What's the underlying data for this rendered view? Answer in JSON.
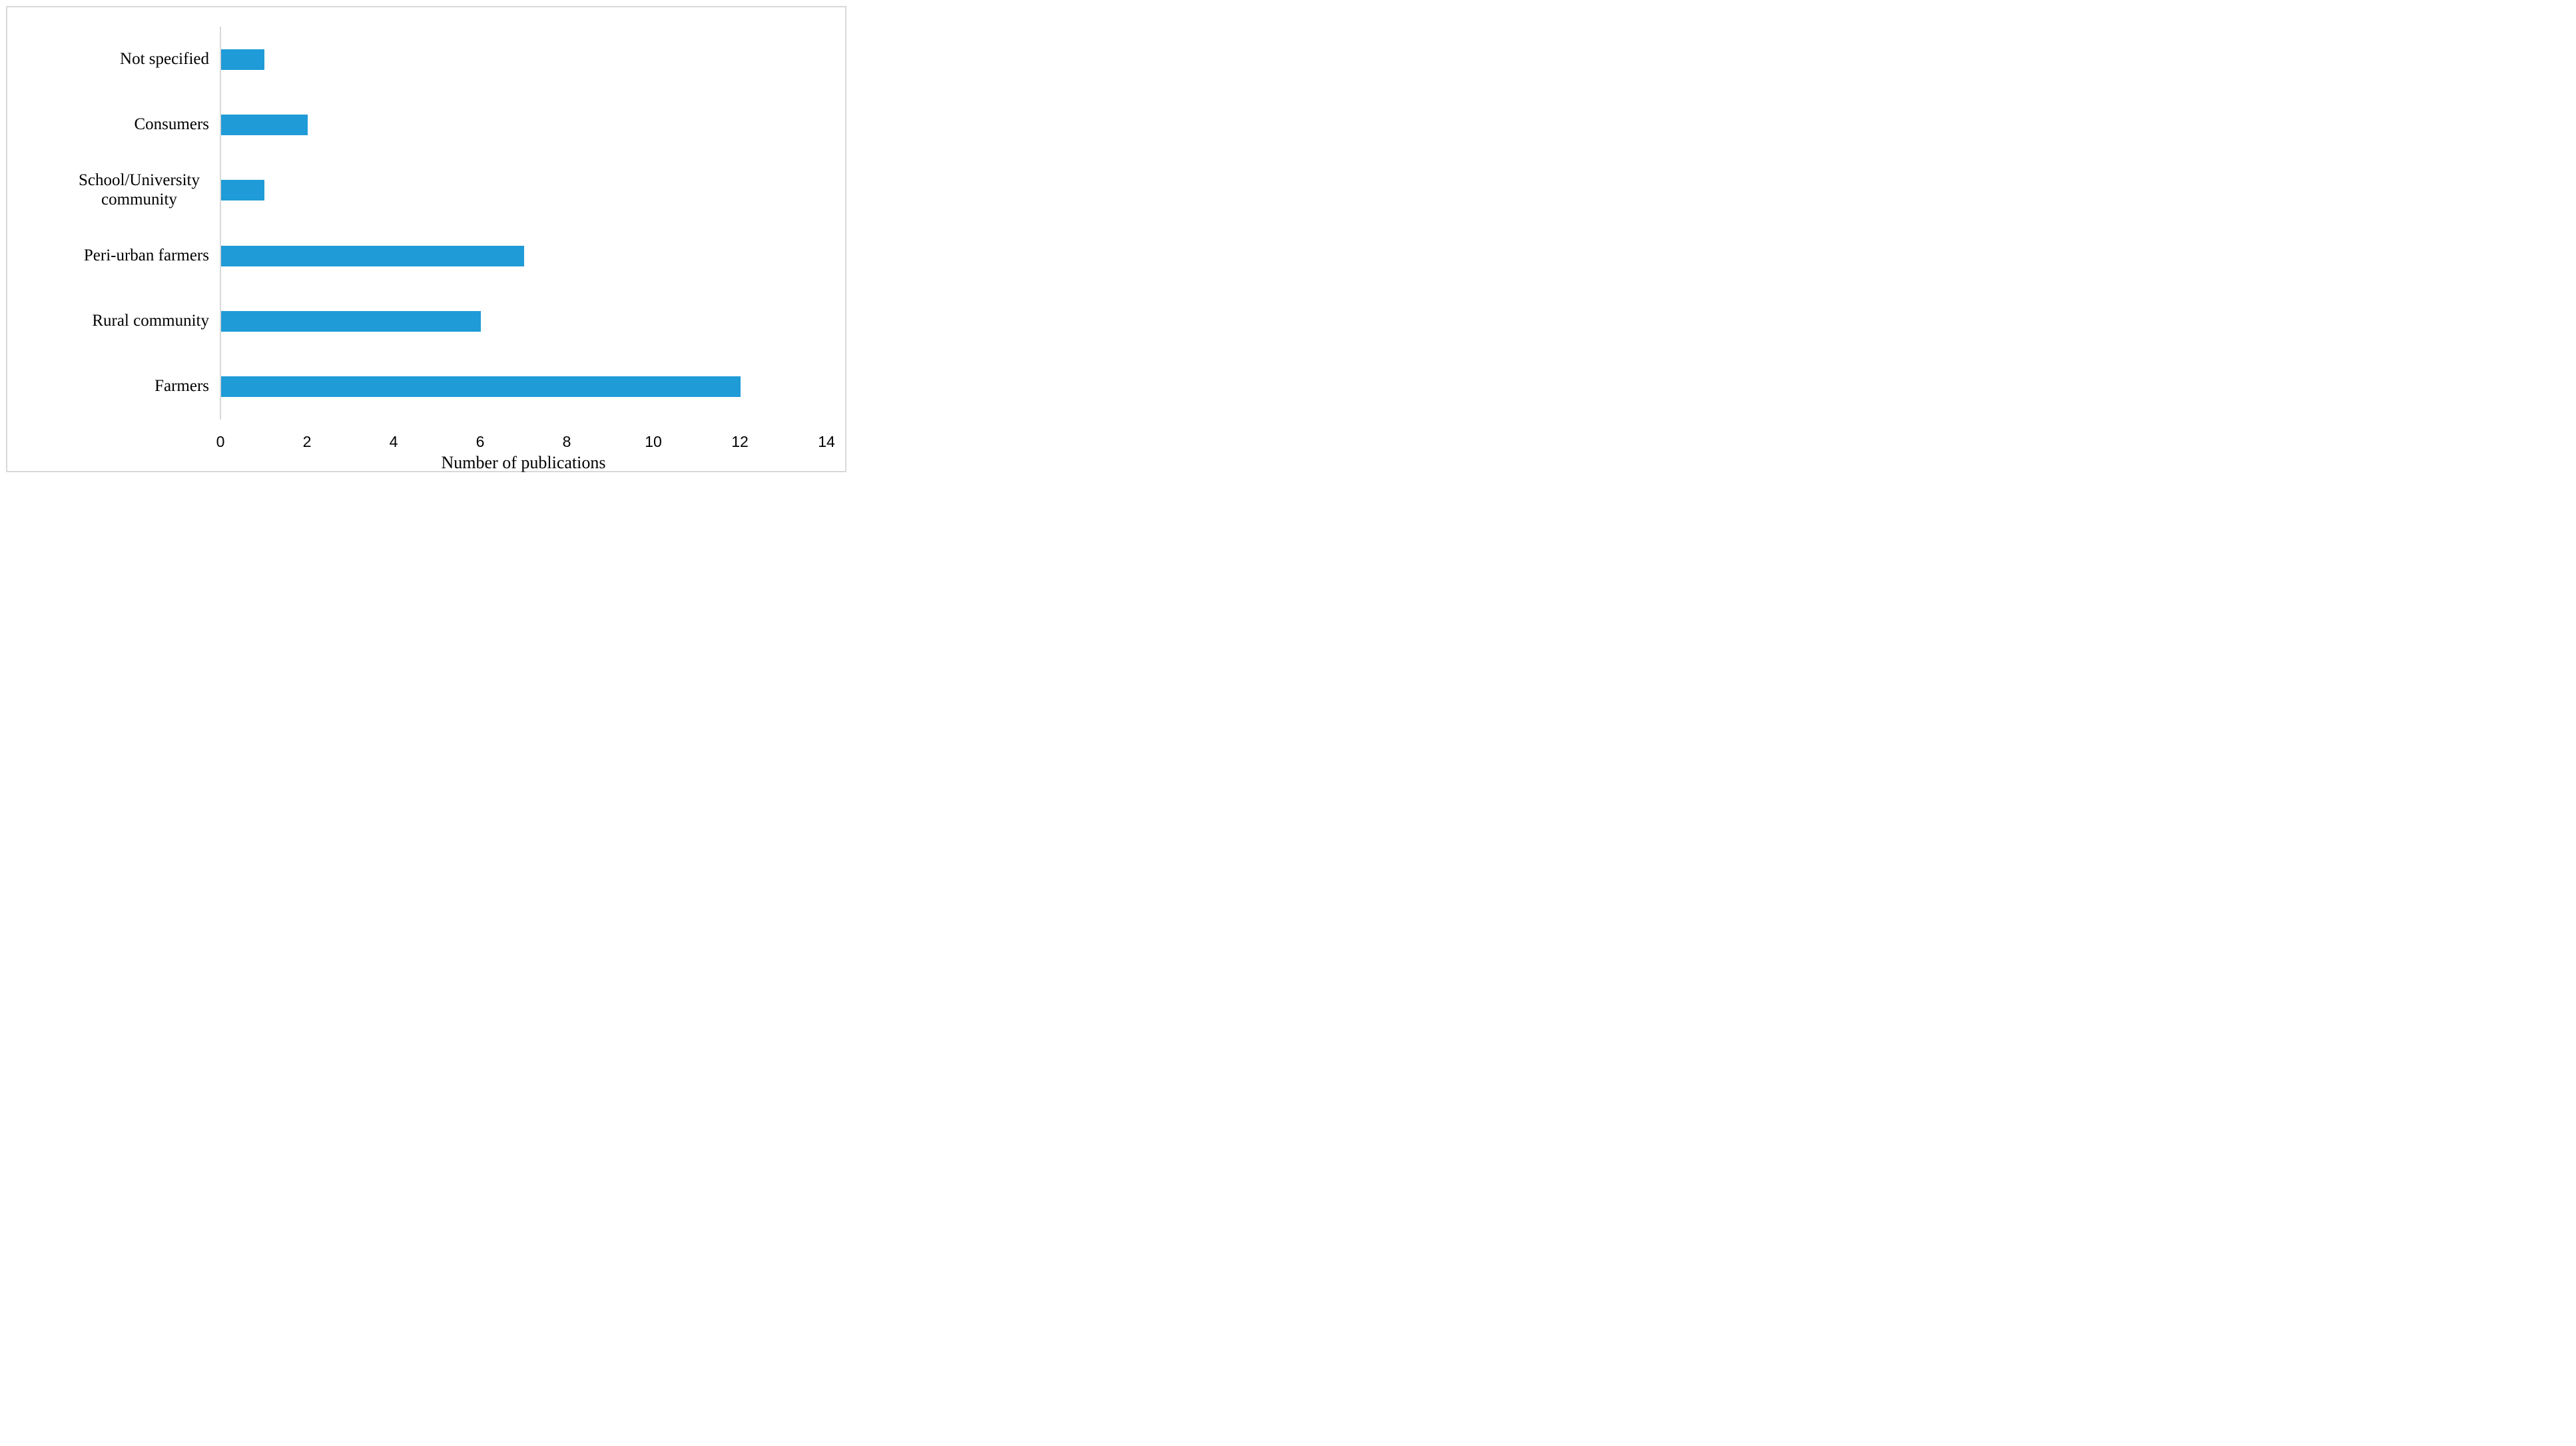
{
  "chart_data": {
    "type": "bar",
    "orientation": "horizontal",
    "categories": [
      "Not specified",
      "Consumers",
      "School/University community",
      "Peri-urban farmers",
      "Rural community",
      "Farmers"
    ],
    "values": [
      1,
      2,
      1,
      7,
      6,
      12
    ],
    "title": "",
    "xlabel": "Number of publications",
    "ylabel": "",
    "xlim": [
      0,
      14
    ],
    "xticks": [
      "0",
      "2",
      "4",
      "6",
      "8",
      "10",
      "12",
      "14"
    ],
    "xtick_values": [
      0,
      2,
      4,
      6,
      8,
      10,
      12,
      14
    ],
    "grid": false,
    "legend_position": "none",
    "colors": {
      "bar": "#1f9bd7",
      "axis_line": "#d9d9d9",
      "chart_border": "#d9d9d9",
      "text": "#000000",
      "background": "#ffffff"
    }
  }
}
